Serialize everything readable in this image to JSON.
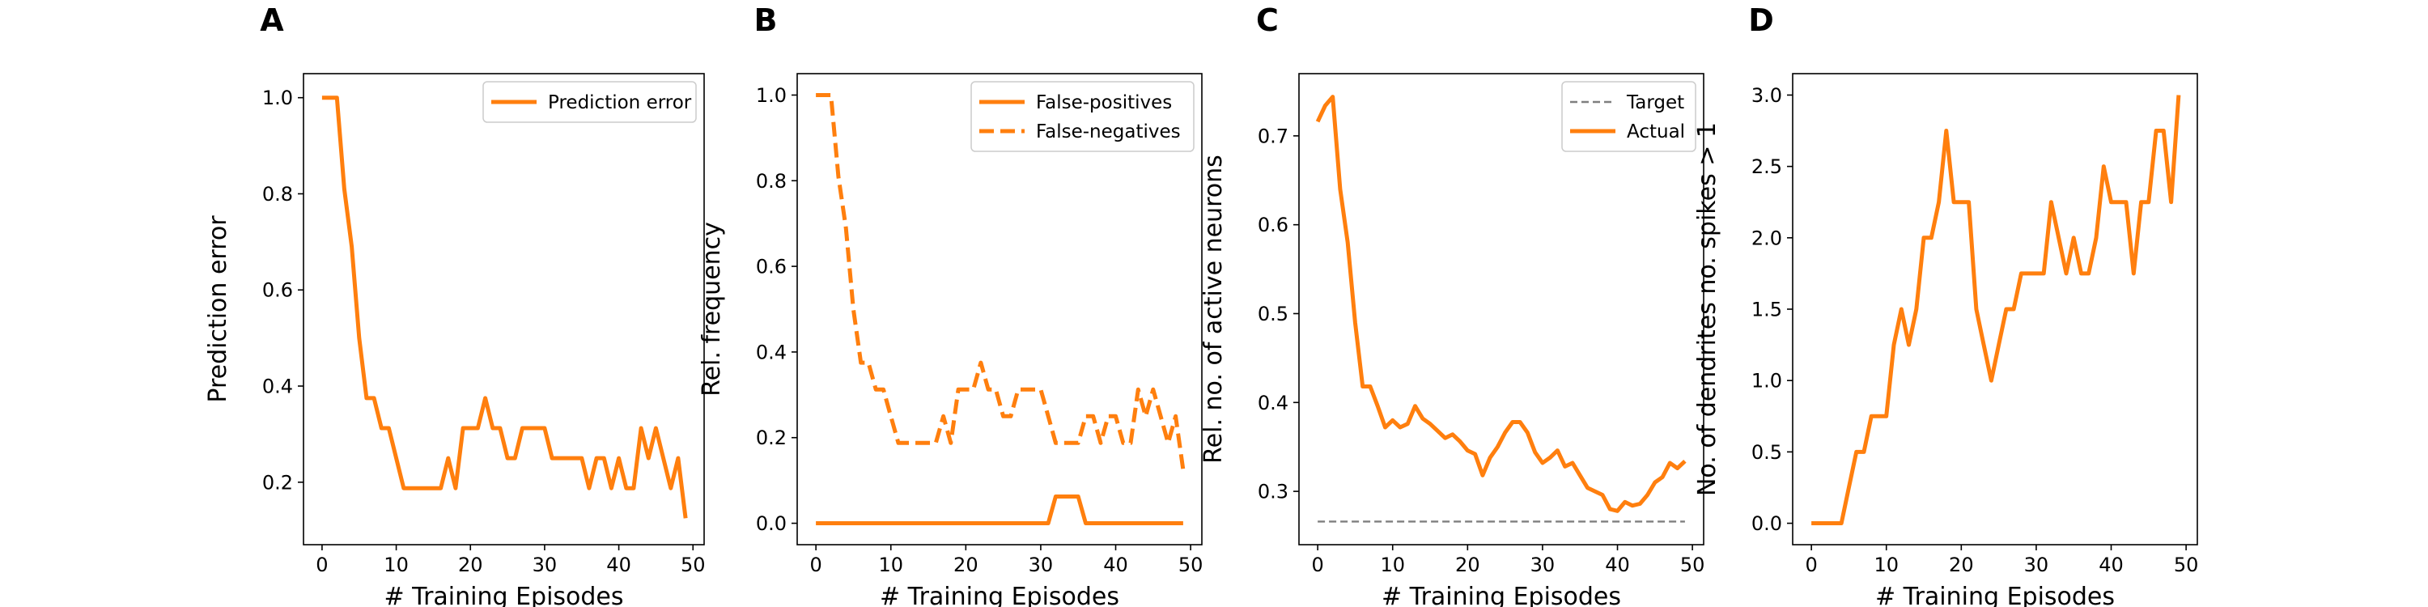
{
  "colors": {
    "orange": "#ff7f0e",
    "target_gray": "#7f7f7f",
    "axis": "#000000",
    "legend_border": "#cccccc"
  },
  "chart_data": [
    {
      "panel": "A",
      "type": "line",
      "xlabel": "# Training Episodes",
      "ylabel": "Prediction error",
      "xlim": [
        -2.5,
        51.5
      ],
      "ylim": [
        0.07,
        1.05
      ],
      "xticks": [
        0,
        10,
        20,
        30,
        40,
        50
      ],
      "xtick_labels": [
        "0",
        "10",
        "20",
        "30",
        "40",
        "50"
      ],
      "yticks": [
        0.2,
        0.4,
        0.6,
        0.8,
        1.0
      ],
      "ytick_labels": [
        "0.2",
        "0.4",
        "0.6",
        "0.8",
        "1.0"
      ],
      "legend": "top-right",
      "series": [
        {
          "name": "Prediction error",
          "style": "solid",
          "color": "#ff7f0e",
          "x": [
            0,
            1,
            2,
            3,
            4,
            5,
            6,
            7,
            8,
            9,
            10,
            11,
            12,
            13,
            14,
            15,
            16,
            17,
            18,
            19,
            20,
            21,
            22,
            23,
            24,
            25,
            26,
            27,
            28,
            29,
            30,
            31,
            32,
            33,
            34,
            35,
            36,
            37,
            38,
            39,
            40,
            41,
            42,
            43,
            44,
            45,
            46,
            47,
            48,
            49
          ],
          "y": [
            1.0,
            1.0,
            1.0,
            0.81,
            0.69,
            0.5,
            0.375,
            0.375,
            0.3125,
            0.3125,
            0.25,
            0.1875,
            0.1875,
            0.1875,
            0.1875,
            0.1875,
            0.1875,
            0.25,
            0.1875,
            0.3125,
            0.3125,
            0.3125,
            0.375,
            0.3125,
            0.3125,
            0.25,
            0.25,
            0.3125,
            0.3125,
            0.3125,
            0.3125,
            0.25,
            0.25,
            0.25,
            0.25,
            0.25,
            0.1875,
            0.25,
            0.25,
            0.1875,
            0.25,
            0.1875,
            0.1875,
            0.3125,
            0.25,
            0.3125,
            0.25,
            0.1875,
            0.25,
            0.125
          ]
        }
      ]
    },
    {
      "panel": "B",
      "type": "line",
      "xlabel": "# Training Episodes",
      "ylabel": "Rel. frequency",
      "xlim": [
        -2.5,
        51.5
      ],
      "ylim": [
        -0.05,
        1.05
      ],
      "xticks": [
        0,
        10,
        20,
        30,
        40,
        50
      ],
      "xtick_labels": [
        "0",
        "10",
        "20",
        "30",
        "40",
        "50"
      ],
      "yticks": [
        0.0,
        0.2,
        0.4,
        0.6,
        0.8,
        1.0
      ],
      "ytick_labels": [
        "0.0",
        "0.2",
        "0.4",
        "0.6",
        "0.8",
        "1.0"
      ],
      "legend": "top-right",
      "series": [
        {
          "name": "False-positives",
          "style": "solid",
          "color": "#ff7f0e",
          "x": [
            0,
            1,
            2,
            3,
            4,
            5,
            6,
            7,
            8,
            9,
            10,
            11,
            12,
            13,
            14,
            15,
            16,
            17,
            18,
            19,
            20,
            21,
            22,
            23,
            24,
            25,
            26,
            27,
            28,
            29,
            30,
            31,
            32,
            33,
            34,
            35,
            36,
            37,
            38,
            39,
            40,
            41,
            42,
            43,
            44,
            45,
            46,
            47,
            48,
            49
          ],
          "y": [
            0,
            0,
            0,
            0,
            0,
            0,
            0,
            0,
            0,
            0,
            0,
            0,
            0,
            0,
            0,
            0,
            0,
            0,
            0,
            0,
            0,
            0,
            0,
            0,
            0,
            0,
            0,
            0,
            0,
            0,
            0,
            0,
            0.0625,
            0.0625,
            0.0625,
            0.0625,
            0,
            0,
            0,
            0,
            0,
            0,
            0,
            0,
            0,
            0,
            0,
            0,
            0,
            0
          ]
        },
        {
          "name": "False-negatives",
          "style": "dashed",
          "color": "#ff7f0e",
          "x": [
            0,
            1,
            2,
            3,
            4,
            5,
            6,
            7,
            8,
            9,
            10,
            11,
            12,
            13,
            14,
            15,
            16,
            17,
            18,
            19,
            20,
            21,
            22,
            23,
            24,
            25,
            26,
            27,
            28,
            29,
            30,
            31,
            32,
            33,
            34,
            35,
            36,
            37,
            38,
            39,
            40,
            41,
            42,
            43,
            44,
            45,
            46,
            47,
            48,
            49
          ],
          "y": [
            1.0,
            1.0,
            1.0,
            0.81,
            0.69,
            0.5,
            0.375,
            0.375,
            0.3125,
            0.3125,
            0.25,
            0.1875,
            0.1875,
            0.1875,
            0.1875,
            0.1875,
            0.1875,
            0.25,
            0.1875,
            0.3125,
            0.3125,
            0.3125,
            0.375,
            0.3125,
            0.3125,
            0.25,
            0.25,
            0.3125,
            0.3125,
            0.3125,
            0.3125,
            0.25,
            0.1875,
            0.1875,
            0.1875,
            0.1875,
            0.25,
            0.25,
            0.1875,
            0.25,
            0.25,
            0.1875,
            0.1875,
            0.3125,
            0.25,
            0.3125,
            0.25,
            0.1875,
            0.25,
            0.125
          ]
        }
      ]
    },
    {
      "panel": "C",
      "type": "line",
      "xlabel": "# Training Episodes",
      "ylabel": "Rel. no. of active neurons",
      "xlim": [
        -2.5,
        51.5
      ],
      "ylim": [
        0.24,
        0.77
      ],
      "xticks": [
        0,
        10,
        20,
        30,
        40,
        50
      ],
      "xtick_labels": [
        "0",
        "10",
        "20",
        "30",
        "40",
        "50"
      ],
      "yticks": [
        0.3,
        0.4,
        0.5,
        0.6,
        0.7
      ],
      "ytick_labels": [
        "0.3",
        "0.4",
        "0.5",
        "0.6",
        "0.7"
      ],
      "legend": "top-right",
      "series": [
        {
          "name": "Target",
          "style": "dashed-thin",
          "color": "#7f7f7f",
          "x": [
            0,
            49
          ],
          "y": [
            0.266,
            0.266
          ]
        },
        {
          "name": "Actual",
          "style": "solid",
          "color": "#ff7f0e",
          "x": [
            0,
            1,
            2,
            3,
            4,
            5,
            6,
            7,
            8,
            9,
            10,
            11,
            12,
            13,
            14,
            15,
            16,
            17,
            18,
            19,
            20,
            21,
            22,
            23,
            24,
            25,
            26,
            27,
            28,
            29,
            30,
            31,
            32,
            33,
            34,
            35,
            36,
            37,
            38,
            39,
            40,
            41,
            42,
            43,
            44,
            45,
            46,
            47,
            48,
            49
          ],
          "y": [
            0.716,
            0.734,
            0.744,
            0.64,
            0.58,
            0.49,
            0.418,
            0.418,
            0.396,
            0.372,
            0.38,
            0.372,
            0.376,
            0.396,
            0.382,
            0.376,
            0.368,
            0.36,
            0.364,
            0.356,
            0.346,
            0.342,
            0.318,
            0.338,
            0.35,
            0.366,
            0.378,
            0.378,
            0.366,
            0.344,
            0.332,
            0.338,
            0.346,
            0.328,
            0.332,
            0.318,
            0.304,
            0.3,
            0.296,
            0.28,
            0.278,
            0.288,
            0.284,
            0.286,
            0.296,
            0.31,
            0.316,
            0.332,
            0.326,
            0.334
          ]
        }
      ]
    },
    {
      "panel": "D",
      "type": "line",
      "xlabel": "# Training Episodes",
      "ylabel": "No. of dendrites no. spikes > 1",
      "xlim": [
        -2.5,
        51.5
      ],
      "ylim": [
        -0.15,
        3.15
      ],
      "xticks": [
        0,
        10,
        20,
        30,
        40,
        50
      ],
      "xtick_labels": [
        "0",
        "10",
        "20",
        "30",
        "40",
        "50"
      ],
      "yticks": [
        0.0,
        0.5,
        1.0,
        1.5,
        2.0,
        2.5,
        3.0
      ],
      "ytick_labels": [
        "0.0",
        "0.5",
        "1.0",
        "1.5",
        "2.0",
        "2.5",
        "3.0"
      ],
      "legend": "none",
      "series": [
        {
          "style": "solid",
          "color": "#ff7f0e",
          "x": [
            0,
            1,
            2,
            3,
            4,
            5,
            6,
            7,
            8,
            9,
            10,
            11,
            12,
            13,
            14,
            15,
            16,
            17,
            18,
            19,
            20,
            21,
            22,
            23,
            24,
            25,
            26,
            27,
            28,
            29,
            30,
            31,
            32,
            33,
            34,
            35,
            36,
            37,
            38,
            39,
            40,
            41,
            42,
            43,
            44,
            45,
            46,
            47,
            48,
            49
          ],
          "y": [
            0,
            0,
            0,
            0,
            0,
            0.25,
            0.5,
            0.5,
            0.75,
            0.75,
            0.75,
            1.25,
            1.5,
            1.25,
            1.5,
            2.0,
            2.0,
            2.25,
            2.75,
            2.25,
            2.25,
            2.25,
            1.5,
            1.25,
            1.0,
            1.25,
            1.5,
            1.5,
            1.75,
            1.75,
            1.75,
            1.75,
            2.25,
            2.0,
            1.75,
            2.0,
            1.75,
            1.75,
            2.0,
            2.5,
            2.25,
            2.25,
            2.25,
            1.75,
            2.25,
            2.25,
            2.75,
            2.75,
            2.25,
            3.0
          ]
        }
      ]
    }
  ]
}
